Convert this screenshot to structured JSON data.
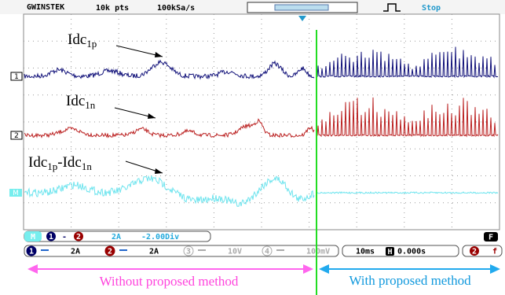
{
  "header": {
    "brand": "GWINSTEK",
    "points": "10k pts",
    "rate": "100kSa/s",
    "status": "Stop"
  },
  "channels": [
    {
      "marker": "1",
      "label": "Idc",
      "sub": "1p"
    },
    {
      "marker": "2",
      "label": "Idc",
      "sub": "1n"
    },
    {
      "marker": "M",
      "label": "Idc",
      "sub": "1p",
      "label2": "-Idc",
      "sub2": "1n"
    }
  ],
  "math": {
    "marker": "M",
    "a": "1",
    "op": "-",
    "b": "2",
    "scale": "2A",
    "offset": "-2.00Div"
  },
  "footer": {
    "channels": [
      {
        "num": "1",
        "scale": "2A"
      },
      {
        "num": "2",
        "scale": "2A"
      },
      {
        "num": "3",
        "scale": "10V"
      },
      {
        "num": "4",
        "scale": "100mV"
      }
    ],
    "timebase": "10ms",
    "h": "H",
    "position": "0.000s",
    "trig_ch": "2",
    "trig_slope": "f",
    "menu": "F"
  },
  "annotations": {
    "left": "Without proposed method",
    "right": "With proposed method"
  }
}
